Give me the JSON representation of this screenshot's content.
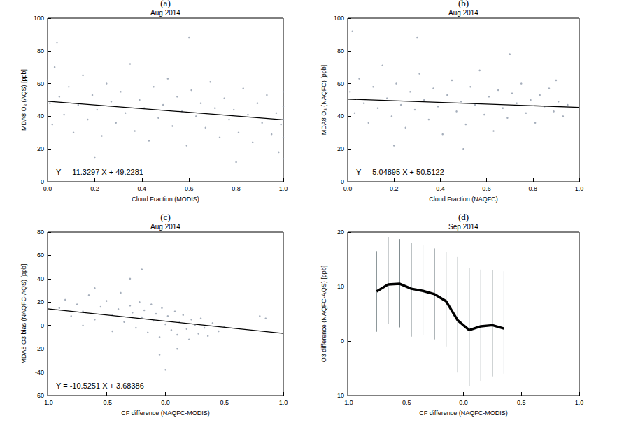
{
  "chart_data": [
    {
      "type": "scatter",
      "panel": "(a)",
      "title": "Aug 2014",
      "x_label": "Cloud Fraction (MODIS)",
      "y_label": "MDA8 O₃ (AQS) [ppb]",
      "color": "#8e9aaa",
      "grid": false,
      "xlim": [
        0,
        1
      ],
      "xticks": [
        {
          "value": 0,
          "label": "0.0"
        },
        0.2,
        0.4,
        0.6,
        0.8,
        {
          "value": 1,
          "label": "1.0"
        }
      ],
      "ylim": [
        0,
        100
      ],
      "yticks": [
        0,
        20,
        40,
        60,
        80,
        100
      ],
      "x": [
        0.0,
        0.01,
        0.02,
        0.03,
        0.05,
        0.07,
        0.09,
        0.11,
        0.13,
        0.15,
        0.17,
        0.19,
        0.21,
        0.23,
        0.25,
        0.27,
        0.29,
        0.31,
        0.33,
        0.35,
        0.37,
        0.39,
        0.41,
        0.43,
        0.45,
        0.47,
        0.49,
        0.51,
        0.53,
        0.55,
        0.57,
        0.59,
        0.61,
        0.63,
        0.65,
        0.67,
        0.69,
        0.71,
        0.73,
        0.75,
        0.77,
        0.79,
        0.81,
        0.83,
        0.85,
        0.87,
        0.89,
        0.91,
        0.93,
        0.95,
        0.97,
        0.98,
        0.99,
        1.0,
        1.0,
        1.0,
        1.0,
        1.0,
        0.04,
        0.6,
        0.2,
        0.8
      ],
      "values": [
        62,
        48,
        35,
        70,
        52,
        41,
        58,
        30,
        47,
        65,
        38,
        53,
        44,
        28,
        60,
        49,
        36,
        55,
        42,
        72,
        31,
        50,
        45,
        25,
        58,
        39,
        47,
        63,
        34,
        52,
        43,
        22,
        56,
        40,
        48,
        33,
        61,
        45,
        27,
        51,
        38,
        44,
        30,
        57,
        41,
        24,
        48,
        36,
        53,
        29,
        42,
        18,
        35,
        46,
        27,
        55,
        38,
        14,
        85,
        88,
        15,
        12
      ],
      "fit": {
        "slope": -11.3297,
        "intercept": 49.2281,
        "label": "Y = -11.3297 X + 49.2281",
        "color": "#000000"
      }
    },
    {
      "type": "scatter",
      "panel": "(b)",
      "title": "Aug 2014",
      "x_label": "Cloud Fraction (NAQFC)",
      "y_label": "MDA8 O₃ (NAQFC) [ppb]",
      "color": "#8e9aaa",
      "grid": false,
      "xlim": [
        0,
        1
      ],
      "xticks": [
        {
          "value": 0,
          "label": "0.0"
        },
        0.2,
        0.4,
        0.6,
        0.8,
        {
          "value": 1,
          "label": "1.0"
        }
      ],
      "ylim": [
        0,
        100
      ],
      "yticks": [
        0,
        20,
        40,
        60,
        80,
        100
      ],
      "x": [
        0.01,
        0.03,
        0.05,
        0.07,
        0.09,
        0.11,
        0.13,
        0.15,
        0.17,
        0.19,
        0.21,
        0.23,
        0.25,
        0.27,
        0.29,
        0.31,
        0.33,
        0.35,
        0.37,
        0.39,
        0.41,
        0.43,
        0.45,
        0.47,
        0.49,
        0.51,
        0.53,
        0.55,
        0.57,
        0.59,
        0.61,
        0.63,
        0.65,
        0.67,
        0.69,
        0.71,
        0.73,
        0.75,
        0.77,
        0.79,
        0.81,
        0.83,
        0.85,
        0.87,
        0.89,
        0.91,
        0.93,
        0.95,
        0.02,
        0.3,
        0.5,
        0.2,
        0.7,
        0.9
      ],
      "values": [
        55,
        42,
        63,
        48,
        36,
        58,
        45,
        71,
        51,
        40,
        60,
        47,
        33,
        55,
        44,
        66,
        50,
        38,
        57,
        46,
        29,
        53,
        62,
        43,
        49,
        35,
        58,
        47,
        68,
        41,
        52,
        31,
        56,
        45,
        39,
        54,
        48,
        60,
        42,
        50,
        36,
        53,
        46,
        57,
        43,
        49,
        40,
        47,
        92,
        88,
        20,
        22,
        78,
        62
      ],
      "fit": {
        "slope": -5.04895,
        "intercept": 50.5122,
        "label": "Y = -5.04895 X + 50.5122",
        "color": "#000000"
      }
    },
    {
      "type": "scatter",
      "panel": "(c)",
      "title": "Aug 2014",
      "x_label": "CF difference (NAQFC-MODIS)",
      "y_label": "MDA8 O3 bias (NAQFC-AQS) [ppb]",
      "color": "#8e9aaa",
      "grid": false,
      "xlim": [
        -1,
        1
      ],
      "xticks": [
        {
          "value": -1,
          "label": "-1.0"
        },
        -0.5,
        {
          "value": 0,
          "label": "0.0"
        },
        0.5,
        {
          "value": 1,
          "label": "1.0"
        }
      ],
      "ylim": [
        -60,
        80
      ],
      "yticks": [
        -60,
        -40,
        -20,
        0,
        20,
        40,
        60,
        80
      ],
      "x": [
        -0.9,
        -0.85,
        -0.8,
        -0.75,
        -0.7,
        -0.65,
        -0.6,
        -0.55,
        -0.5,
        -0.45,
        -0.4,
        -0.38,
        -0.35,
        -0.3,
        -0.28,
        -0.25,
        -0.22,
        -0.2,
        -0.18,
        -0.15,
        -0.12,
        -0.1,
        -0.08,
        -0.05,
        -0.03,
        0.0,
        0.02,
        0.05,
        0.08,
        0.1,
        0.12,
        0.15,
        0.18,
        0.2,
        0.22,
        0.25,
        0.28,
        0.3,
        0.33,
        0.36,
        0.4,
        0.45,
        0.5,
        -0.6,
        -0.3,
        -0.05,
        0.0,
        0.1,
        -0.2,
        0.8,
        0.85,
        -0.45,
        -0.7
      ],
      "values": [
        15,
        22,
        8,
        18,
        12,
        26,
        5,
        16,
        21,
        9,
        14,
        28,
        3,
        17,
        11,
        -2,
        20,
        7,
        13,
        -6,
        18,
        4,
        10,
        -10,
        15,
        1,
        8,
        -4,
        12,
        -8,
        3,
        9,
        -3,
        -12,
        5,
        0,
        -7,
        6,
        -2,
        -9,
        2,
        -5,
        -1,
        32,
        40,
        -25,
        -38,
        -20,
        48,
        8,
        6,
        -5,
        0
      ],
      "fit": {
        "slope": -10.5251,
        "intercept": 3.68386,
        "label": "Y = -10.5251 X + 3.68386",
        "color": "#000000"
      }
    },
    {
      "type": "line",
      "panel": "(d)",
      "title": "Sep 2014",
      "x_label": "CF difference (NAQFC-MODIS)",
      "y_label": "O3 difference (NAQFC-AQS) [ppb]",
      "color": "#000000",
      "grid": false,
      "xlim": [
        -1,
        1
      ],
      "xticks": [
        {
          "value": -1,
          "label": "-1.0"
        },
        -0.5,
        {
          "value": 0,
          "label": "0.0"
        },
        0.5,
        {
          "value": 1,
          "label": "1.0"
        }
      ],
      "ylim": [
        -10,
        20
      ],
      "yticks": [
        -10,
        0,
        10,
        20
      ],
      "x": [
        -0.75,
        -0.65,
        -0.55,
        -0.45,
        -0.35,
        -0.25,
        -0.15,
        -0.05,
        0.05,
        0.15,
        0.25,
        0.35
      ],
      "values": [
        9.1,
        10.4,
        10.5,
        9.6,
        9.2,
        8.6,
        7.3,
        3.8,
        2.0,
        2.7,
        2.9,
        2.3
      ],
      "error_bars": {
        "lower": [
          1.7,
          3.2,
          2.5,
          0.8,
          1.1,
          0.3,
          -1.0,
          -5.8,
          -8.3,
          -7.3,
          -6.5,
          -6.0
        ],
        "upper": [
          16.5,
          19.1,
          18.7,
          18.0,
          17.6,
          17.0,
          16.3,
          15.4,
          13.4,
          13.1,
          13.0,
          12.8
        ],
        "color": "#7f8a8e"
      }
    }
  ]
}
